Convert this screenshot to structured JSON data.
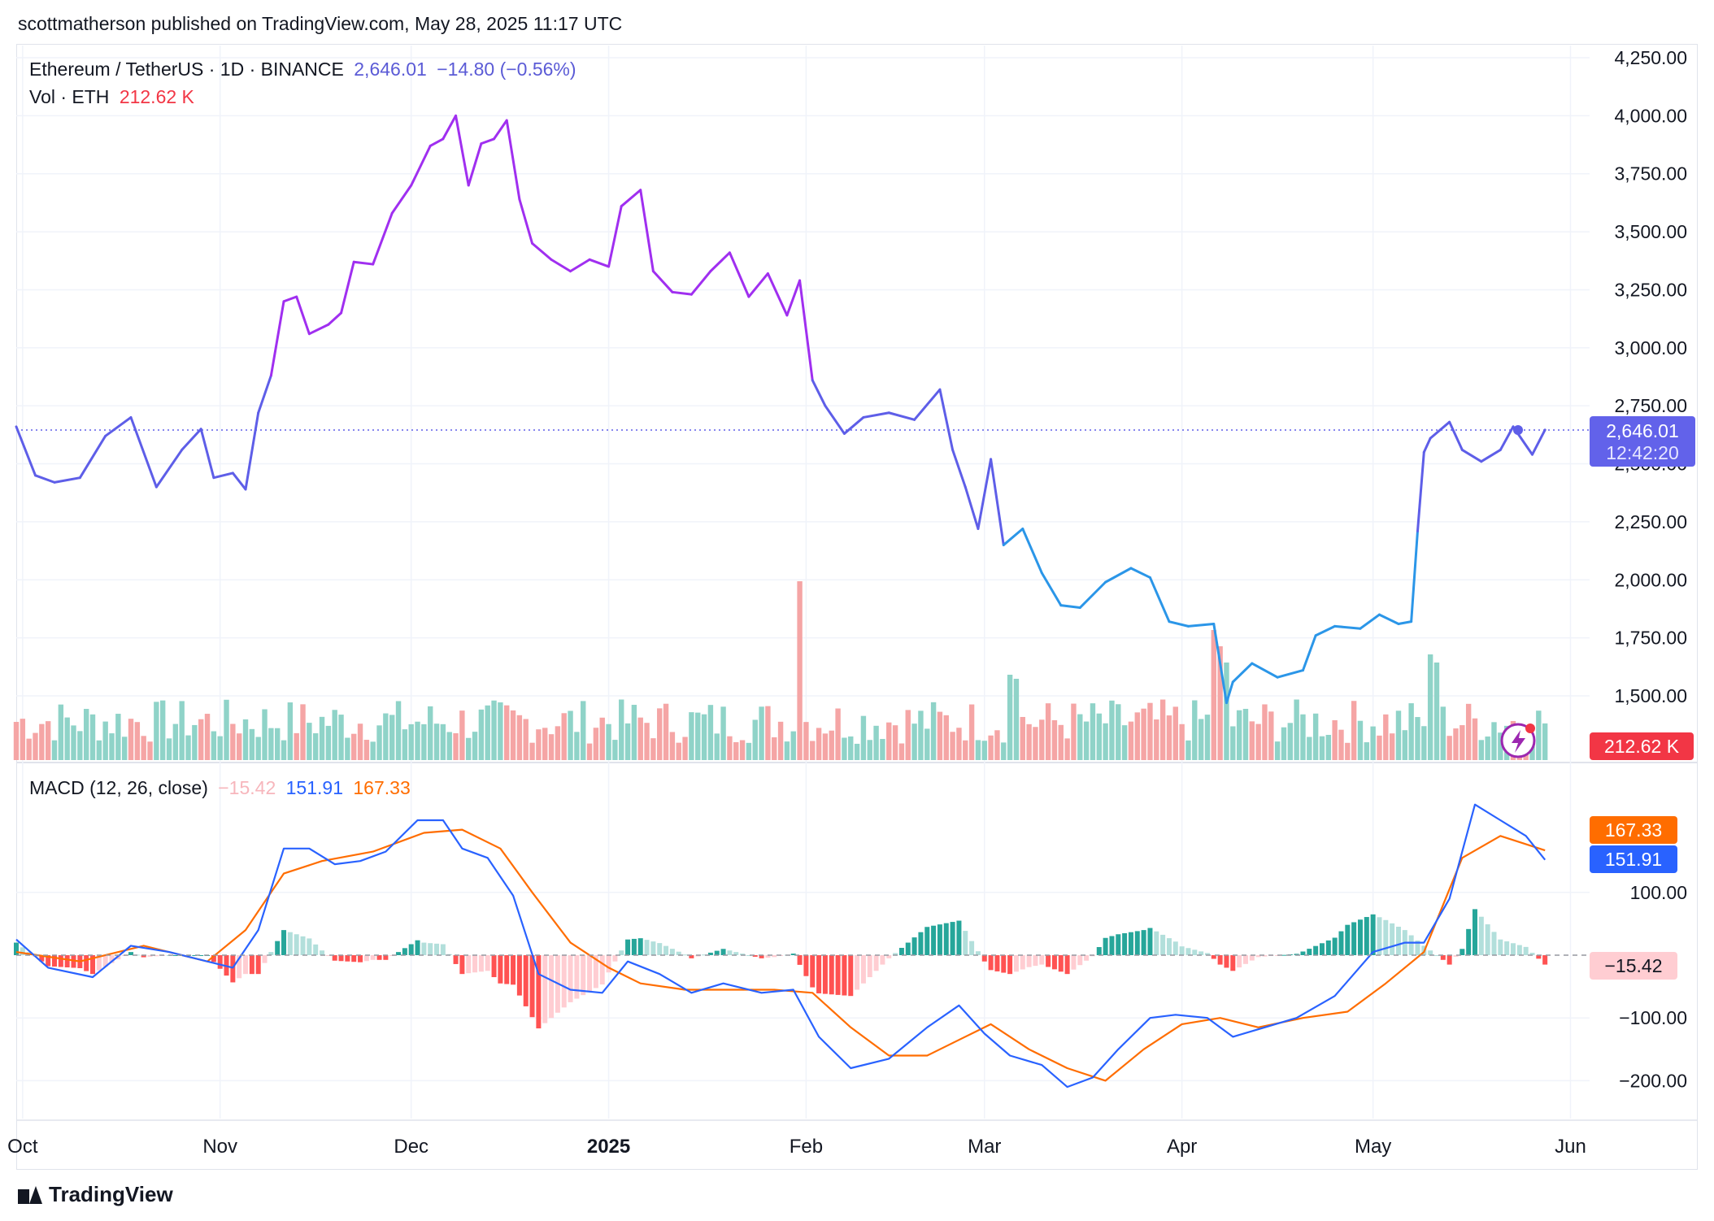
{
  "publisher": "scottmatherson published on TradingView.com, May 28, 2025 11:17 UTC",
  "brand": "TradingView",
  "legend": {
    "symbol": "Ethereum / TetherUS · 1D · BINANCE",
    "last": "2,646.01",
    "change": "−14.80 (−0.56%)",
    "vol_label": "Vol · ETH",
    "vol_value": "212.62 K",
    "macd_label": "MACD (12, 26, close)",
    "macd_hist": "−15.42",
    "macd_line": "151.91",
    "macd_signal": "167.33"
  },
  "badges": {
    "price": "2,646.01",
    "countdown": "12:42:20",
    "volume": "212.62 K",
    "signal": "167.33",
    "macd": "151.91",
    "hist": "−15.42"
  },
  "colors": {
    "price_line_high": "#a02ff0",
    "price_line_mid": "#5e5ee8",
    "price_line_low": "#2b96e8",
    "volume_up": "#8fd3c8",
    "volume_down": "#f5a5a5",
    "macd_line": "#2962ff",
    "signal_line": "#ff6d00",
    "hist_pos_strong": "#26a69a",
    "hist_pos_weak": "#b2dfdb",
    "hist_neg_strong": "#ff5252",
    "hist_neg_weak": "#ffcdd2"
  },
  "chart_data": [
    {
      "type": "line",
      "title": "Ethereum / TetherUS · 1D · BINANCE",
      "y_ticks": [
        "4,250.00",
        "4,000.00",
        "3,750.00",
        "3,500.00",
        "3,250.00",
        "3,000.00",
        "2,750.00",
        "2,500.00",
        "2,250.00",
        "2,000.00",
        "1,750.00",
        "1,500.00"
      ],
      "ylim": [
        1450,
        4250
      ],
      "x_ticks": [
        "Oct",
        "Nov",
        "Dec",
        "2025",
        "Feb",
        "Mar",
        "Apr",
        "May",
        "Jun"
      ],
      "x_tick_dates": [
        "2024-10-01",
        "2024-11-01",
        "2024-12-01",
        "2025-01-01",
        "2025-02-01",
        "2025-03-01",
        "2025-04-01",
        "2025-05-01",
        "2025-06-01"
      ],
      "x_range": [
        "2024-09-30",
        "2025-06-04"
      ],
      "last_value": 2646.01,
      "series": [
        {
          "x": [
            "2024-09-30",
            "2024-10-03",
            "2024-10-06",
            "2024-10-10",
            "2024-10-14",
            "2024-10-18",
            "2024-10-22",
            "2024-10-26",
            "2024-10-29",
            "2024-10-31",
            "2024-11-03",
            "2024-11-05",
            "2024-11-07",
            "2024-11-09",
            "2024-11-11",
            "2024-11-13",
            "2024-11-15",
            "2024-11-18",
            "2024-11-20",
            "2024-11-22",
            "2024-11-25",
            "2024-11-28",
            "2024-12-01",
            "2024-12-04",
            "2024-12-06",
            "2024-12-08",
            "2024-12-10",
            "2024-12-12",
            "2024-12-14",
            "2024-12-16",
            "2024-12-18",
            "2024-12-20",
            "2024-12-23",
            "2024-12-26",
            "2024-12-29",
            "2025-01-01",
            "2025-01-03",
            "2025-01-06",
            "2025-01-08",
            "2025-01-11",
            "2025-01-14",
            "2025-01-17",
            "2025-01-20",
            "2025-01-23",
            "2025-01-26",
            "2025-01-29",
            "2025-01-31",
            "2025-02-02",
            "2025-02-04",
            "2025-02-07",
            "2025-02-10",
            "2025-02-14",
            "2025-02-18",
            "2025-02-22",
            "2025-02-24",
            "2025-02-26",
            "2025-02-28",
            "2025-03-02",
            "2025-03-04",
            "2025-03-07",
            "2025-03-10",
            "2025-03-13",
            "2025-03-16",
            "2025-03-20",
            "2025-03-24",
            "2025-03-27",
            "2025-03-30",
            "2025-04-02",
            "2025-04-06",
            "2025-04-08",
            "2025-04-09",
            "2025-04-12",
            "2025-04-16",
            "2025-04-20",
            "2025-04-22",
            "2025-04-25",
            "2025-04-29",
            "2025-05-02",
            "2025-05-05",
            "2025-05-07",
            "2025-05-08",
            "2025-05-09",
            "2025-05-10",
            "2025-05-13",
            "2025-05-15",
            "2025-05-18",
            "2025-05-21",
            "2025-05-23",
            "2025-05-26",
            "2025-05-28"
          ],
          "values": [
            2660,
            2450,
            2420,
            2440,
            2620,
            2700,
            2400,
            2560,
            2650,
            2440,
            2460,
            2390,
            2720,
            2880,
            3200,
            3220,
            3060,
            3100,
            3150,
            3370,
            3360,
            3580,
            3700,
            3870,
            3900,
            4000,
            3700,
            3880,
            3900,
            3980,
            3640,
            3450,
            3380,
            3330,
            3380,
            3350,
            3610,
            3680,
            3330,
            3240,
            3230,
            3330,
            3410,
            3220,
            3320,
            3140,
            3290,
            2860,
            2750,
            2630,
            2700,
            2720,
            2690,
            2820,
            2560,
            2400,
            2220,
            2520,
            2150,
            2220,
            2030,
            1890,
            1880,
            1990,
            2050,
            2010,
            1820,
            1800,
            1810,
            1470,
            1560,
            1640,
            1580,
            1610,
            1760,
            1800,
            1790,
            1850,
            1810,
            1820,
            2210,
            2550,
            2610,
            2680,
            2560,
            2510,
            2560,
            2660,
            2540,
            2646
          ]
        }
      ]
    },
    {
      "type": "bar",
      "title": "Vol · ETH",
      "last_value": "212.62 K"
    },
    {
      "type": "line",
      "title": "MACD (12, 26, close)",
      "y_ticks": [
        "100.00",
        "0.00",
        "−100.00",
        "−200.00"
      ],
      "ylim": [
        -250,
        300
      ],
      "series": [
        {
          "name": "MACD",
          "x": [
            "2024-09-30",
            "2024-10-05",
            "2024-10-12",
            "2024-10-18",
            "2024-10-24",
            "2024-10-30",
            "2024-11-03",
            "2024-11-07",
            "2024-11-11",
            "2024-11-15",
            "2024-11-19",
            "2024-11-23",
            "2024-11-27",
            "2024-12-02",
            "2024-12-06",
            "2024-12-09",
            "2024-12-13",
            "2024-12-17",
            "2024-12-21",
            "2024-12-26",
            "2024-12-31",
            "2025-01-04",
            "2025-01-09",
            "2025-01-14",
            "2025-01-19",
            "2025-01-25",
            "2025-01-30",
            "2025-02-03",
            "2025-02-08",
            "2025-02-14",
            "2025-02-20",
            "2025-02-25",
            "2025-03-01",
            "2025-03-05",
            "2025-03-10",
            "2025-03-14",
            "2025-03-18",
            "2025-03-22",
            "2025-03-27",
            "2025-03-31",
            "2025-04-05",
            "2025-04-09",
            "2025-04-14",
            "2025-04-19",
            "2025-04-25",
            "2025-05-01",
            "2025-05-06",
            "2025-05-09",
            "2025-05-13",
            "2025-05-17",
            "2025-05-21",
            "2025-05-25",
            "2025-05-28"
          ],
          "values": [
            25,
            -20,
            -35,
            15,
            5,
            -10,
            -20,
            40,
            170,
            170,
            145,
            150,
            165,
            215,
            215,
            170,
            155,
            95,
            -30,
            -55,
            -60,
            -10,
            -30,
            -60,
            -45,
            -60,
            -55,
            -130,
            -180,
            -165,
            -115,
            -80,
            -125,
            -160,
            -175,
            -210,
            -195,
            -150,
            -100,
            -95,
            -100,
            -130,
            -115,
            -100,
            -65,
            5,
            20,
            20,
            90,
            240,
            215,
            190,
            152
          ]
        },
        {
          "name": "Signal",
          "x": [
            "2024-09-30",
            "2024-10-10",
            "2024-10-20",
            "2024-10-30",
            "2024-11-05",
            "2024-11-11",
            "2024-11-17",
            "2024-11-25",
            "2024-12-03",
            "2024-12-09",
            "2024-12-15",
            "2024-12-20",
            "2024-12-26",
            "2025-01-01",
            "2025-01-06",
            "2025-01-13",
            "2025-01-20",
            "2025-01-27",
            "2025-02-02",
            "2025-02-08",
            "2025-02-14",
            "2025-02-20",
            "2025-02-25",
            "2025-03-02",
            "2025-03-08",
            "2025-03-14",
            "2025-03-20",
            "2025-03-26",
            "2025-04-01",
            "2025-04-07",
            "2025-04-13",
            "2025-04-20",
            "2025-04-27",
            "2025-05-03",
            "2025-05-09",
            "2025-05-15",
            "2025-05-21",
            "2025-05-28"
          ],
          "values": [
            5,
            -10,
            15,
            -10,
            40,
            130,
            150,
            165,
            195,
            200,
            170,
            100,
            20,
            -20,
            -45,
            -55,
            -55,
            -55,
            -60,
            -115,
            -160,
            -160,
            -135,
            -110,
            -150,
            -180,
            -200,
            -150,
            -110,
            -100,
            -115,
            -100,
            -90,
            -45,
            5,
            155,
            190,
            167
          ]
        }
      ]
    }
  ]
}
